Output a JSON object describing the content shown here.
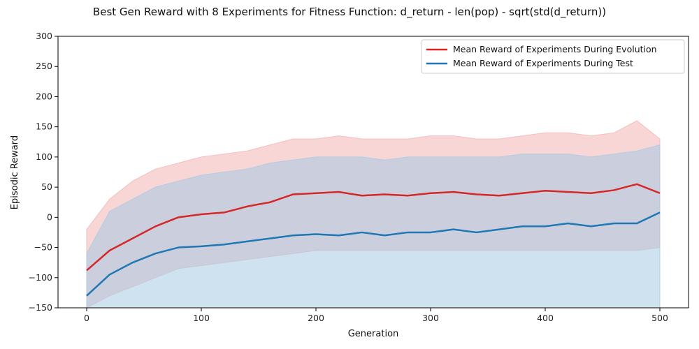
{
  "chart_data": {
    "type": "line",
    "title": "Best Gen Reward with 8 Experiments for Fitness Function: d_return - len(pop) - sqrt(std(d_return))",
    "xlabel": "Generation",
    "ylabel": "Episodic Reward",
    "xlim": [
      -25,
      525
    ],
    "ylim": [
      -150,
      300
    ],
    "x_ticks": [
      0,
      100,
      200,
      300,
      400,
      500
    ],
    "x_tick_labels": [
      "0",
      "100",
      "200",
      "300",
      "400",
      "500"
    ],
    "y_ticks": [
      -150,
      -100,
      -50,
      0,
      50,
      100,
      150,
      200,
      250,
      300
    ],
    "y_tick_labels": [
      "−150",
      "−100",
      "−50",
      "0",
      "50",
      "100",
      "150",
      "200",
      "250",
      "300"
    ],
    "grid": false,
    "legend_position": "top-right",
    "x": [
      0,
      20,
      40,
      60,
      80,
      100,
      120,
      140,
      160,
      180,
      200,
      220,
      240,
      260,
      280,
      300,
      320,
      340,
      360,
      380,
      400,
      420,
      440,
      460,
      480,
      500
    ],
    "series": [
      {
        "name": "Mean Reward of Experiments During Evolution",
        "color": "#d62728",
        "values": [
          -88,
          -55,
          -35,
          -15,
          0,
          5,
          8,
          18,
          25,
          38,
          40,
          42,
          36,
          38,
          36,
          40,
          42,
          38,
          36,
          40,
          44,
          42,
          40,
          45,
          55,
          40
        ],
        "band_upper": [
          -20,
          30,
          60,
          80,
          90,
          100,
          105,
          110,
          120,
          130,
          130,
          135,
          130,
          130,
          130,
          135,
          135,
          130,
          130,
          135,
          140,
          140,
          135,
          140,
          160,
          130
        ],
        "band_lower": [
          -150,
          -130,
          -115,
          -100,
          -85,
          -80,
          -75,
          -70,
          -65,
          -60,
          -55,
          -55,
          -55,
          -55,
          -55,
          -55,
          -55,
          -55,
          -55,
          -55,
          -55,
          -55,
          -55,
          -55,
          -55,
          -50
        ],
        "band_color": "#f4b4b4"
      },
      {
        "name": "Mean Reward of Experiments During Test",
        "color": "#1f77b4",
        "values": [
          -130,
          -95,
          -75,
          -60,
          -50,
          -48,
          -45,
          -40,
          -35,
          -30,
          -28,
          -30,
          -25,
          -30,
          -25,
          -25,
          -20,
          -25,
          -20,
          -15,
          -15,
          -10,
          -15,
          -10,
          -10,
          8
        ],
        "band_upper": [
          -60,
          10,
          30,
          50,
          60,
          70,
          75,
          80,
          90,
          95,
          100,
          100,
          100,
          95,
          100,
          100,
          100,
          100,
          100,
          105,
          105,
          105,
          100,
          105,
          110,
          120
        ],
        "band_lower": [
          -150,
          -150,
          -150,
          -150,
          -150,
          -150,
          -150,
          -150,
          -150,
          -150,
          -150,
          -150,
          -150,
          -150,
          -150,
          -150,
          -150,
          -150,
          -150,
          -150,
          -150,
          -150,
          -150,
          -150,
          -150,
          -150
        ],
        "band_color": "#a6cbe3"
      }
    ]
  }
}
